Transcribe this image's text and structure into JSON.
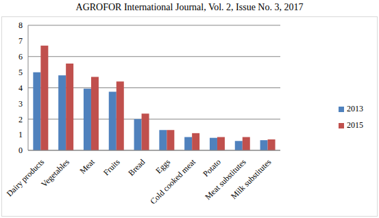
{
  "chart_data": {
    "type": "bar",
    "title": "AGROFOR International Journal, Vol. 2, Issue No. 3, 2017",
    "categories": [
      "Dairy products",
      "Vegetables",
      "Meat",
      "Fruits",
      "Bread",
      "Eggs",
      "Cold cooked meat",
      "Potato",
      "Meat substitutes",
      "Milk substitutes"
    ],
    "series": [
      {
        "name": "2013",
        "color": "#4f81bd",
        "values": [
          5.0,
          4.8,
          3.95,
          3.75,
          2.0,
          1.3,
          0.85,
          0.8,
          0.6,
          0.65
        ]
      },
      {
        "name": "2015",
        "color": "#c0504d",
        "values": [
          6.7,
          5.55,
          4.7,
          4.4,
          2.35,
          1.3,
          1.1,
          0.85,
          0.85,
          0.7
        ]
      }
    ],
    "ylim": [
      0,
      8
    ],
    "yticks": [
      0,
      1,
      2,
      3,
      4,
      5,
      6,
      7,
      8
    ],
    "grid": true,
    "legend": "right"
  }
}
